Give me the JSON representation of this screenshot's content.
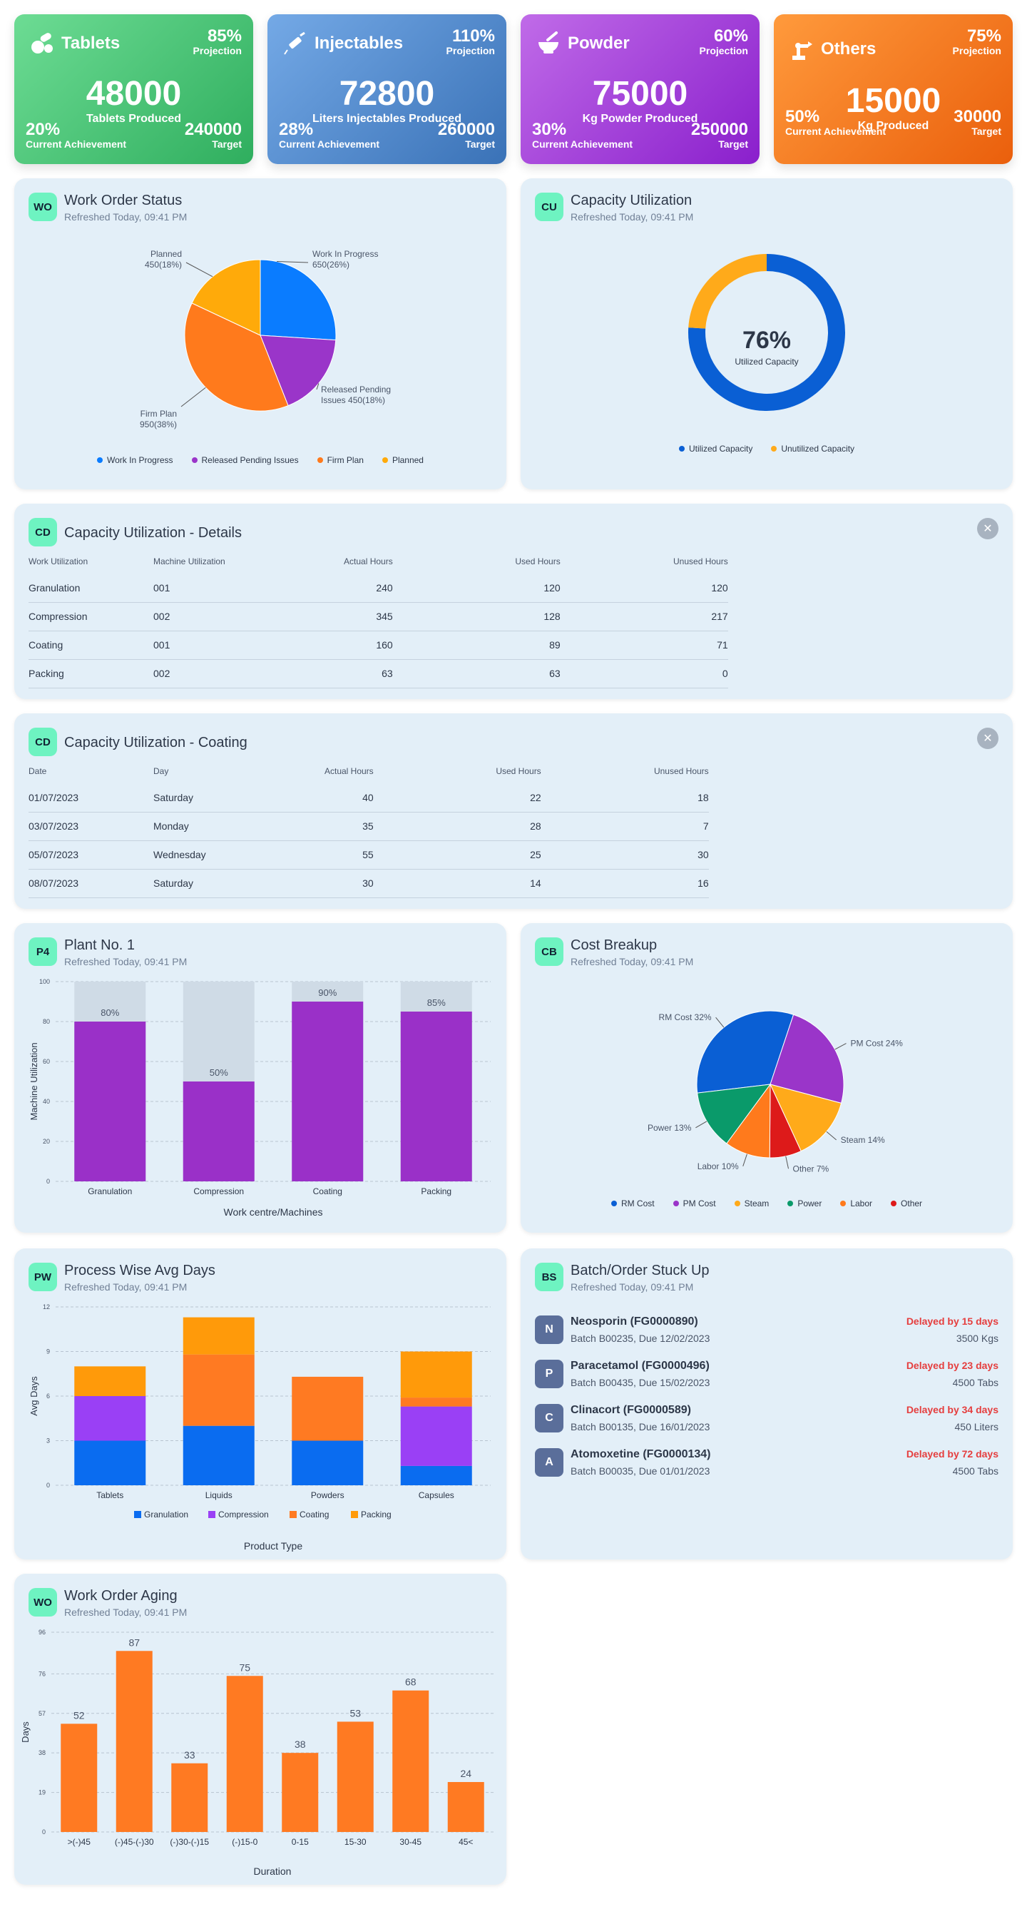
{
  "kpis": [
    {
      "name": "Tablets",
      "projection": "85%",
      "projection_label": "Projection",
      "value": "48000",
      "value_label": "Tablets Produced",
      "achievement": "20%",
      "achievement_label": "Current Achievement",
      "target": "240000",
      "target_label": "Target",
      "icon": "pills-icon"
    },
    {
      "name": "Injectables",
      "projection": "110%",
      "projection_label": "Projection",
      "value": "72800",
      "value_label": "Liters Injectables Produced",
      "achievement": "28%",
      "achievement_label": "Current Achievement",
      "target": "260000",
      "target_label": "Target",
      "icon": "syringe-icon"
    },
    {
      "name": "Powder",
      "projection": "60%",
      "projection_label": "Projection",
      "value": "75000",
      "value_label": "Kg Powder Produced",
      "achievement": "30%",
      "achievement_label": "Current Achievement",
      "target": "250000",
      "target_label": "Target",
      "icon": "mortar-icon"
    },
    {
      "name": "Others",
      "projection": "75%",
      "projection_label": "Projection",
      "value": "15000",
      "value_label": "Kg Produced",
      "achievement": "50%",
      "achievement_label": "Current Achievement",
      "target": "30000",
      "target_label": "Target",
      "icon": "robot-arm-icon"
    }
  ],
  "colors": {
    "tablets": "#3dbb6c",
    "injectables": "#4a86c9",
    "powder": "#9b3fd6",
    "others": "#f27a1a",
    "card_bg": "#e3eff8",
    "badge": "#6ef3c1",
    "bar_orange": "#ff7a22",
    "bar_purple": "#9a30c8",
    "delay_red": "#e53e3e"
  },
  "work_order_status": {
    "badge": "WO",
    "title": "Work Order Status",
    "subtitle": "Refreshed Today, 09:41 PM",
    "labels": {
      "wip": [
        "Work In Progress",
        "650(26%)"
      ],
      "released": [
        "Released Pending",
        "Issues 450(18%)"
      ],
      "firm": [
        "Firm Plan",
        "950(38%)"
      ],
      "planned": [
        "Planned",
        "450(18%)"
      ]
    },
    "legend": [
      "Work In Progress",
      "Released Pending Issues",
      "Firm Plan",
      "Planned"
    ]
  },
  "capacity_utilization": {
    "badge": "CU",
    "title": "Capacity Utilization",
    "subtitle": "Refreshed Today, 09:41 PM",
    "center_value": "76%",
    "center_label": "Utilized Capacity",
    "legend": [
      "Utilized Capacity",
      "Unutilized Capacity"
    ]
  },
  "capacity_details": {
    "badge": "CD",
    "title": "Capacity Utilization - Details",
    "headers": [
      "Work Utilization",
      "Machine Utilization",
      "Actual Hours",
      "Used Hours",
      "Unused Hours"
    ],
    "rows": [
      [
        "Granulation",
        "001",
        "240",
        "120",
        "120"
      ],
      [
        "Compression",
        "002",
        "345",
        "128",
        "217"
      ],
      [
        "Coating",
        "001",
        "160",
        "89",
        "71"
      ],
      [
        "Packing",
        "002",
        "63",
        "63",
        "0"
      ]
    ]
  },
  "capacity_coating": {
    "badge": "CD",
    "title": "Capacity Utilization - Coating",
    "headers": [
      "Date",
      "Day",
      "Actual Hours",
      "Used Hours",
      "Unused Hours"
    ],
    "rows": [
      [
        "01/07/2023",
        "Saturday",
        "40",
        "22",
        "18"
      ],
      [
        "03/07/2023",
        "Monday",
        "35",
        "28",
        "7"
      ],
      [
        "05/07/2023",
        "Wednesday",
        "55",
        "25",
        "30"
      ],
      [
        "08/07/2023",
        "Saturday",
        "30",
        "14",
        "16"
      ]
    ]
  },
  "plant": {
    "badge": "P4",
    "title": "Plant No. 1",
    "subtitle": "Refreshed Today, 09:41 PM"
  },
  "cost_breakup": {
    "badge": "CB",
    "title": "Cost Breakup",
    "subtitle": "Refreshed Today, 09:41 PM"
  },
  "process_days": {
    "badge": "PW",
    "title": "Process Wise Avg Days",
    "subtitle": "Refreshed Today, 09:41 PM"
  },
  "batch_stuck": {
    "badge": "BS",
    "title": "Batch/Order Stuck Up",
    "subtitle": "Refreshed Today, 09:41 PM",
    "items": [
      {
        "initial": "N",
        "name": "Neosporin (FG0000890)",
        "sub": "Batch B00235, Due 12/02/2023",
        "delay": "Delayed by 15 days",
        "qty": "3500 Kgs"
      },
      {
        "initial": "P",
        "name": "Paracetamol (FG0000496)",
        "sub": "Batch B00435, Due 15/02/2023",
        "delay": "Delayed by 23 days",
        "qty": "4500 Tabs"
      },
      {
        "initial": "C",
        "name": "Clinacort (FG0000589)",
        "sub": "Batch B00135, Due 16/01/2023",
        "delay": "Delayed by 34 days",
        "qty": "450 Liters"
      },
      {
        "initial": "A",
        "name": "Atomoxetine (FG0000134)",
        "sub": "Batch B00035, Due 01/01/2023",
        "delay": "Delayed by 72 days",
        "qty": "4500 Tabs"
      }
    ]
  },
  "aging": {
    "badge": "WO",
    "title": "Work Order Aging",
    "subtitle": "Refreshed Today, 09:41 PM"
  },
  "chart_data": [
    {
      "type": "pie",
      "id": "work-order-status",
      "categories": [
        "Work In Progress",
        "Released Pending Issues",
        "Firm Plan",
        "Planned"
      ],
      "values": [
        650,
        450,
        950,
        450
      ],
      "colors": [
        "#0a7cff",
        "#9a35c9",
        "#ff7a1c",
        "#ffaa0a"
      ]
    },
    {
      "type": "pie",
      "id": "capacity-utilization",
      "categories": [
        "Utilized Capacity",
        "Unutilized Capacity"
      ],
      "values": [
        76,
        24
      ],
      "colors": [
        "#0a5fd4",
        "#ffaa1a"
      ]
    },
    {
      "type": "bar",
      "id": "plant-no-1",
      "categories": [
        "Granulation",
        "Compression",
        "Coating",
        "Packing"
      ],
      "values": [
        80,
        50,
        90,
        85
      ],
      "data_labels": [
        "80%",
        "50%",
        "90%",
        "85%"
      ],
      "xlabel": "Work centre/Machines",
      "ylabel": "Machine Utilization",
      "ylim": [
        0,
        100
      ],
      "yticks": [
        0,
        20,
        40,
        60,
        80,
        100
      ],
      "grid": true
    },
    {
      "type": "pie",
      "id": "cost-breakup",
      "categories": [
        "RM Cost",
        "PM Cost",
        "Steam",
        "Power",
        "Labor",
        "Other"
      ],
      "values": [
        32,
        24,
        14,
        13,
        10,
        7
      ],
      "slice_labels": [
        "RM Cost 32%",
        "PM Cost 24%",
        "Steam 14%",
        "Power 13%",
        "Labor 10%",
        "Other 7%"
      ],
      "colors": [
        "#0a5fd4",
        "#9a35c9",
        "#ffaa1a",
        "#0a9a6a",
        "#ff7a1c",
        "#dd1a1a"
      ]
    },
    {
      "type": "bar",
      "id": "process-wise-avg-days",
      "stacked": true,
      "categories": [
        "Tablets",
        "Liquids",
        "Powders",
        "Capsules"
      ],
      "series": [
        {
          "name": "Granulation",
          "values": [
            3,
            4,
            3,
            1.3
          ]
        },
        {
          "name": "Compression",
          "values": [
            3,
            0,
            0,
            4
          ]
        },
        {
          "name": "Coating",
          "values": [
            0,
            4.8,
            4.3,
            0.6
          ]
        },
        {
          "name": "Packing",
          "values": [
            2,
            2.5,
            0,
            3.1
          ]
        }
      ],
      "series_colors": [
        "#0a6cf0",
        "#9a40f5",
        "#ff7a22",
        "#ff9a0a"
      ],
      "xlabel": "Product Type",
      "ylabel": "Avg Days",
      "ylim": [
        0,
        12
      ],
      "yticks": [
        0,
        3,
        6,
        9,
        12
      ],
      "grid": true
    },
    {
      "type": "bar",
      "id": "work-order-aging",
      "categories": [
        ">(-)45",
        "(-)45-(-)30",
        "(-)30-(-)15",
        "(-)15-0",
        "0-15",
        "15-30",
        "30-45",
        "45<"
      ],
      "values": [
        52,
        87,
        33,
        75,
        38,
        53,
        68,
        24
      ],
      "xlabel": "Duration",
      "ylabel": "Days",
      "ylim": [
        0,
        96
      ],
      "yticks": [
        0,
        19,
        38,
        57,
        76,
        96
      ],
      "grid": true
    }
  ]
}
